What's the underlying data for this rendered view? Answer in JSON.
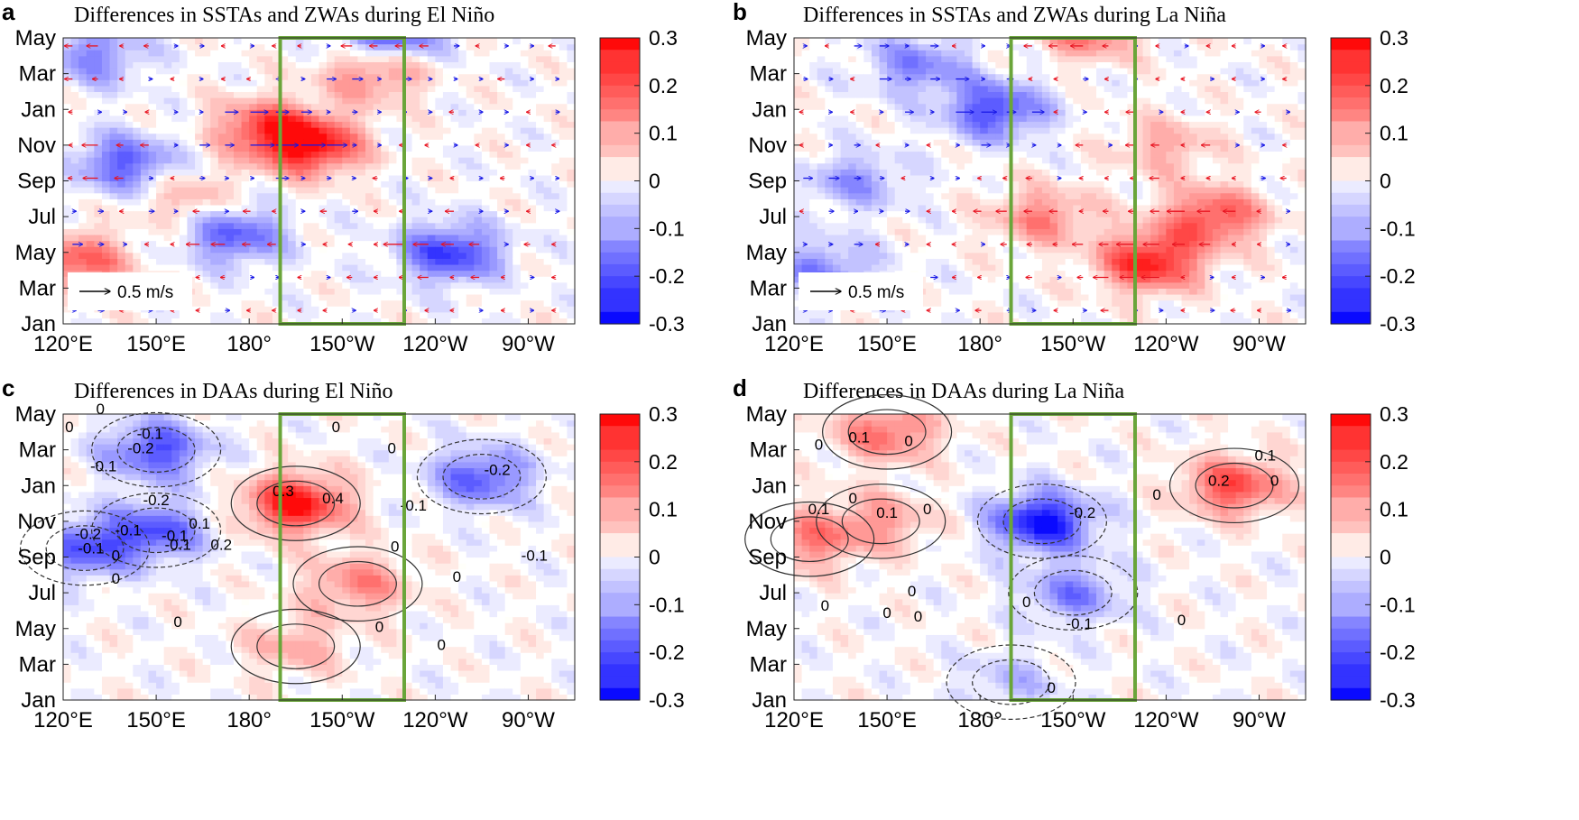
{
  "chart_data": [
    {
      "type": "heatmap",
      "panel": "a",
      "title": "Differences in SSTAs and ZWAs during El Niño",
      "x_ticks": [
        "120°E",
        "150°E",
        "180°",
        "150°W",
        "120°W",
        "90°W"
      ],
      "y_ticks": [
        "Jan",
        "Mar",
        "May",
        "Jul",
        "Sep",
        "Nov",
        "Jan",
        "Mar",
        "May"
      ],
      "colorbar": {
        "min": -0.3,
        "max": 0.3,
        "ticks": [
          "0.3",
          "0.2",
          "0.1",
          "0",
          "-0.1",
          "-0.2",
          "-0.3"
        ]
      },
      "box_lon": [
        190,
        230
      ],
      "vectors": true,
      "reference_vector": "0.5 m/s",
      "contours": false,
      "features": [
        {
          "lon": 200,
          "month": 10,
          "value": 0.29
        },
        {
          "lon": 185,
          "month": 11,
          "value": 0.2
        },
        {
          "lon": 140,
          "month": 9,
          "value": -0.2
        },
        {
          "lon": 125,
          "month": 3.5,
          "value": 0.2
        },
        {
          "lon": 175,
          "month": 5,
          "value": -0.2
        },
        {
          "lon": 245,
          "month": 4,
          "value": -0.24
        },
        {
          "lon": 225,
          "month": 16.5,
          "value": -0.25
        },
        {
          "lon": 130,
          "month": 15,
          "value": -0.15
        },
        {
          "lon": 220,
          "month": 14,
          "value": 0.15
        },
        {
          "lon": 160,
          "month": 7,
          "value": 0.1
        }
      ]
    },
    {
      "type": "heatmap",
      "panel": "b",
      "title": "Differences in SSTAs and ZWAs during La Niña",
      "x_ticks": [
        "120°E",
        "150°E",
        "180°",
        "150°W",
        "120°W",
        "90°W"
      ],
      "y_ticks": [
        "Jan",
        "Mar",
        "May",
        "Jul",
        "Sep",
        "Nov",
        "Jan",
        "Mar",
        "May"
      ],
      "colorbar": {
        "min": -0.3,
        "max": 0.3,
        "ticks": [
          "0.3",
          "0.2",
          "0.1",
          "0",
          "-0.1",
          "-0.2",
          "-0.3"
        ]
      },
      "box_lon": [
        190,
        230
      ],
      "vectors": true,
      "reference_vector": "0.5 m/s",
      "contours": false,
      "features": [
        {
          "lon": 235,
          "month": 3.5,
          "value": 0.28
        },
        {
          "lon": 255,
          "month": 6,
          "value": 0.22
        },
        {
          "lon": 200,
          "month": 6,
          "value": 0.15
        },
        {
          "lon": 185,
          "month": 12,
          "value": -0.22
        },
        {
          "lon": 160,
          "month": 14.5,
          "value": -0.15
        },
        {
          "lon": 215,
          "month": 16.5,
          "value": 0.18
        },
        {
          "lon": 130,
          "month": 3,
          "value": -0.15
        },
        {
          "lon": 140,
          "month": 8,
          "value": -0.12
        },
        {
          "lon": 240,
          "month": 10,
          "value": 0.1
        }
      ]
    },
    {
      "type": "heatmap",
      "panel": "c",
      "title": "Differences in DAAs during El Niño",
      "x_ticks": [
        "120°E",
        "150°E",
        "180°",
        "150°W",
        "120°W",
        "90°W"
      ],
      "y_ticks": [
        "Jan",
        "Mar",
        "May",
        "Jul",
        "Sep",
        "Nov",
        "Jan",
        "Mar",
        "May"
      ],
      "colorbar": {
        "min": -0.3,
        "max": 0.3,
        "ticks": [
          "0.3",
          "0.2",
          "0.1",
          "0",
          "-0.1",
          "-0.2",
          "-0.3"
        ]
      },
      "box_lon": [
        190,
        230
      ],
      "vectors": false,
      "contours": true,
      "contour_labels": [
        {
          "text": "0",
          "lon": 122,
          "month": 15
        },
        {
          "text": "0",
          "lon": 132,
          "month": 16
        },
        {
          "text": "-0.1",
          "lon": 148,
          "month": 14.6
        },
        {
          "text": "-0.2",
          "lon": 145,
          "month": 13.8
        },
        {
          "text": "-0.1",
          "lon": 133,
          "month": 12.8
        },
        {
          "text": "-0.2",
          "lon": 150,
          "month": 10.9
        },
        {
          "text": "-0.1",
          "lon": 141,
          "month": 9.2
        },
        {
          "text": "-0.2",
          "lon": 128,
          "month": 9.0
        },
        {
          "text": "-0.1",
          "lon": 129,
          "month": 8.2
        },
        {
          "text": "-0.1",
          "lon": 156,
          "month": 8.9
        },
        {
          "text": "0",
          "lon": 137,
          "month": 7.8
        },
        {
          "text": "0",
          "lon": 137,
          "month": 6.5
        },
        {
          "text": "0.1",
          "lon": 164,
          "month": 9.6
        },
        {
          "text": "-0.1",
          "lon": 157,
          "month": 8.4
        },
        {
          "text": "0.2",
          "lon": 171,
          "month": 8.4
        },
        {
          "text": "0",
          "lon": 157,
          "month": 4.1
        },
        {
          "text": "0.3",
          "lon": 191,
          "month": 11.4
        },
        {
          "text": "0.4",
          "lon": 207,
          "month": 11.0
        },
        {
          "text": "0",
          "lon": 208,
          "month": 15.0
        },
        {
          "text": "0",
          "lon": 226,
          "month": 13.8
        },
        {
          "text": "0",
          "lon": 227,
          "month": 8.3
        },
        {
          "text": "0",
          "lon": 222,
          "month": 3.8
        },
        {
          "text": "-0.1",
          "lon": 233,
          "month": 10.6
        },
        {
          "text": "-0.2",
          "lon": 260,
          "month": 12.6
        },
        {
          "text": "0",
          "lon": 247,
          "month": 6.6
        },
        {
          "text": "0",
          "lon": 242,
          "month": 2.8
        },
        {
          "text": "-0.1",
          "lon": 272,
          "month": 7.8
        }
      ],
      "features": [
        {
          "lon": 195,
          "month": 11,
          "value": 0.3
        },
        {
          "lon": 215,
          "month": 6.5,
          "value": 0.15
        },
        {
          "lon": 150,
          "month": 14,
          "value": -0.22
        },
        {
          "lon": 150,
          "month": 9.5,
          "value": -0.2
        },
        {
          "lon": 127,
          "month": 8.5,
          "value": -0.2
        },
        {
          "lon": 255,
          "month": 12.5,
          "value": -0.2
        },
        {
          "lon": 195,
          "month": 3,
          "value": 0.1
        }
      ]
    },
    {
      "type": "heatmap",
      "panel": "d",
      "title": "Differences in DAAs during La Niña",
      "x_ticks": [
        "120°E",
        "150°E",
        "180°",
        "150°W",
        "120°W",
        "90°W"
      ],
      "y_ticks": [
        "Jan",
        "Mar",
        "May",
        "Jul",
        "Sep",
        "Nov",
        "Jan",
        "Mar",
        "May"
      ],
      "colorbar": {
        "min": -0.3,
        "max": 0.3,
        "ticks": [
          "0.3",
          "0.2",
          "0.1",
          "0",
          "-0.1",
          "-0.2",
          "-0.3"
        ]
      },
      "box_lon": [
        190,
        230
      ],
      "vectors": false,
      "contours": true,
      "contour_labels": [
        {
          "text": "0.1",
          "lon": 141,
          "month": 14.4
        },
        {
          "text": "0",
          "lon": 128,
          "month": 14.0
        },
        {
          "text": "0",
          "lon": 157,
          "month": 14.2
        },
        {
          "text": "0",
          "lon": 139,
          "month": 11.0
        },
        {
          "text": "0.1",
          "lon": 128,
          "month": 10.4
        },
        {
          "text": "0.1",
          "lon": 150,
          "month": 10.2
        },
        {
          "text": "0",
          "lon": 163,
          "month": 10.4
        },
        {
          "text": "0",
          "lon": 158,
          "month": 5.8
        },
        {
          "text": "0",
          "lon": 160,
          "month": 4.4
        },
        {
          "text": "0",
          "lon": 150,
          "month": 4.6
        },
        {
          "text": "0",
          "lon": 130,
          "month": 5.0
        },
        {
          "text": "-0.2",
          "lon": 213,
          "month": 10.2
        },
        {
          "text": "-0.1",
          "lon": 212,
          "month": 4.0
        },
        {
          "text": "0",
          "lon": 195,
          "month": 5.2
        },
        {
          "text": "0",
          "lon": 203,
          "month": 0.4
        },
        {
          "text": "0",
          "lon": 237,
          "month": 11.2
        },
        {
          "text": "0",
          "lon": 245,
          "month": 4.2
        },
        {
          "text": "0.2",
          "lon": 257,
          "month": 12.0
        },
        {
          "text": "0.1",
          "lon": 272,
          "month": 13.4
        },
        {
          "text": "0",
          "lon": 275,
          "month": 12.0
        }
      ],
      "features": [
        {
          "lon": 200,
          "month": 10,
          "value": -0.3
        },
        {
          "lon": 210,
          "month": 6,
          "value": -0.15
        },
        {
          "lon": 262,
          "month": 12,
          "value": 0.22
        },
        {
          "lon": 150,
          "month": 15,
          "value": 0.18
        },
        {
          "lon": 125,
          "month": 9,
          "value": 0.15
        },
        {
          "lon": 148,
          "month": 10,
          "value": 0.12
        },
        {
          "lon": 190,
          "month": 1,
          "value": -0.08
        }
      ]
    }
  ]
}
